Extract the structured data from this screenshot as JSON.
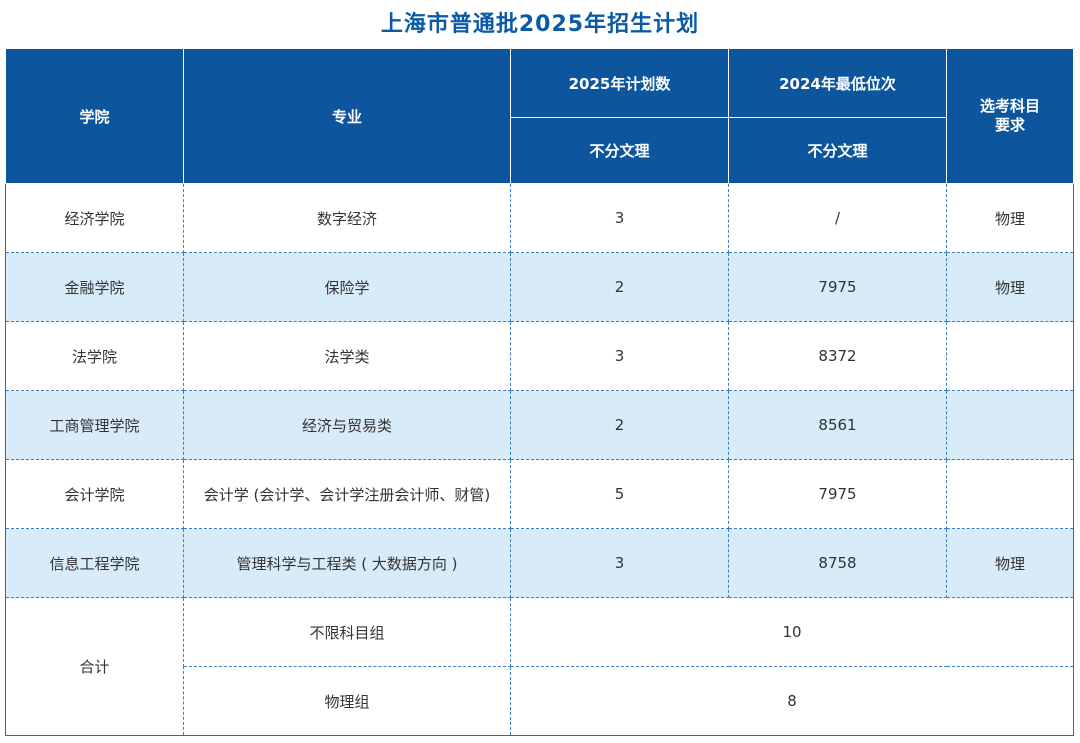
{
  "title": "上海市普通批2025年招生计划",
  "header": {
    "college": "学院",
    "major": "专业",
    "plan_count": "2025年计划数",
    "min_rank": "2024年最低位次",
    "subject_req_line1": "选考科目",
    "subject_req_line2": "要求",
    "plan_sub": "不分文理",
    "rank_sub": "不分文理"
  },
  "rows": [
    {
      "college": "经济学院",
      "major": "数字经济",
      "plan": "3",
      "rank": "/",
      "req": "物理"
    },
    {
      "college": "金融学院",
      "major": "保险学",
      "plan": "2",
      "rank": "7975",
      "req": "物理"
    },
    {
      "college": "法学院",
      "major": "法学类",
      "plan": "3",
      "rank": "8372",
      "req": ""
    },
    {
      "college": "工商管理学院",
      "major": "经济与贸易类",
      "plan": "2",
      "rank": "8561",
      "req": ""
    },
    {
      "college": "会计学院",
      "major": "会计学 (会计学、会计学注册会计师、财管)",
      "plan": "5",
      "rank": "7975",
      "req": ""
    },
    {
      "college": "信息工程学院",
      "major": "管理科学与工程类 ( 大数据方向 )",
      "plan": "3",
      "rank": "8758",
      "req": "物理"
    }
  ],
  "total": {
    "label": "合计",
    "groups": [
      {
        "name": "不限科目组",
        "value": "10"
      },
      {
        "name": "物理组",
        "value": "8"
      }
    ]
  }
}
